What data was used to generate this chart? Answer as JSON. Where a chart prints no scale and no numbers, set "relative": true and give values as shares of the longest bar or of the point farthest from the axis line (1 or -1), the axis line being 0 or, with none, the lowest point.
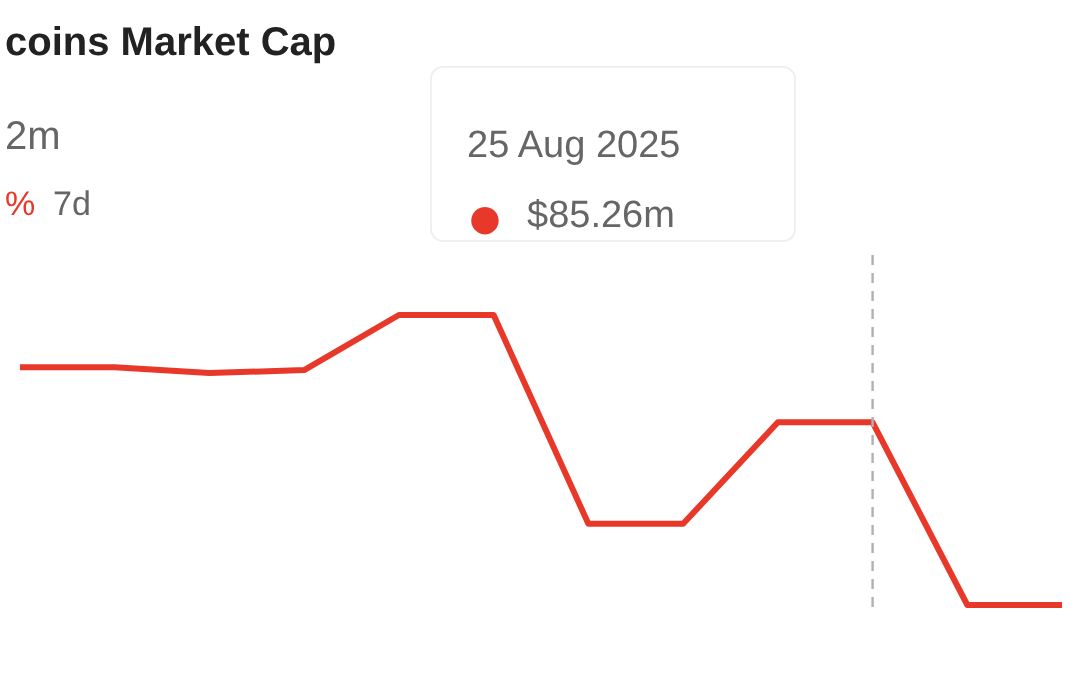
{
  "chart_data": {
    "type": "line",
    "title": "coins Market Cap",
    "subtitle": "2m",
    "relative": true,
    "categories": [
      null,
      null,
      null,
      null,
      null,
      null,
      null,
      null,
      null,
      null,
      null,
      null
    ],
    "series": [
      {
        "color": "#e8382a",
        "values": [
          0.82,
          0.82,
          0.8,
          0.81,
          1,
          1,
          0.28,
          0.28,
          0.63,
          0.63,
          0,
          0
        ]
      }
    ],
    "annotations": [
      "% 7d",
      "25 Aug 2025",
      "●",
      "$85.26m"
    ],
    "grid": false
  }
}
